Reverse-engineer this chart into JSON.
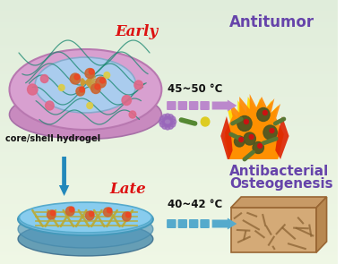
{
  "title_early": "Early",
  "title_early_color": "#dd1111",
  "title_late": "Late",
  "title_late_color": "#dd1111",
  "label_antitumor": "Antitumor",
  "label_antibacterial": "Antibacterial",
  "label_osteogenesis": "Osteogenesis",
  "label_color_purple": "#6644aa",
  "label_core_shell": "core/shell hydrogel",
  "label_core_shell_color": "#111111",
  "temp_early": "45~50 °C",
  "temp_late": "40~42 °C",
  "temp_color": "#111111",
  "figsize": [
    3.94,
    2.95
  ],
  "dpi": 100
}
